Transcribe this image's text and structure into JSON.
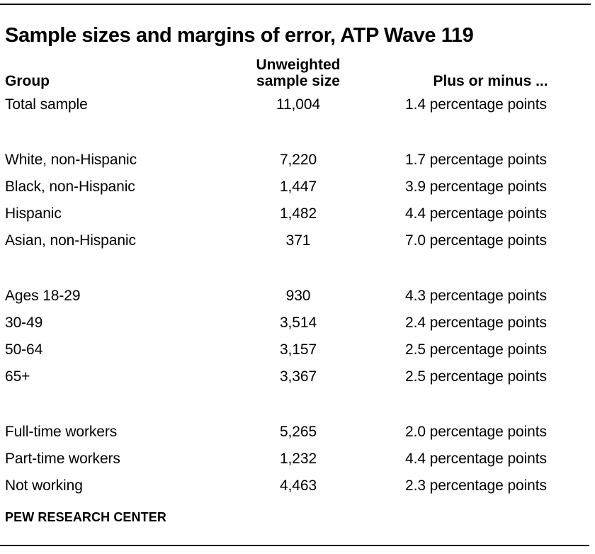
{
  "colors": {
    "background": "#ffffff",
    "text": "#000000",
    "rule": "#000000"
  },
  "title": "Sample sizes and margins of error, ATP Wave 119",
  "header": {
    "group": "Group",
    "sample_size_line1": "Unweighted",
    "sample_size_line2": "sample size",
    "margin": "Plus or minus ..."
  },
  "footer": "PEW RESEARCH CENTER",
  "chart_data": {
    "type": "table",
    "title": "Sample sizes and margins of error, ATP Wave 119",
    "columns": [
      "Group",
      "Unweighted sample size",
      "Plus or minus ..."
    ],
    "row_groups": [
      [
        {
          "group": "Total sample",
          "sample_size": "11,004",
          "margin_of_error": "1.4 percentage points"
        }
      ],
      [
        {
          "group": "White, non-Hispanic",
          "sample_size": "7,220",
          "margin_of_error": "1.7 percentage points"
        },
        {
          "group": "Black, non-Hispanic",
          "sample_size": "1,447",
          "margin_of_error": "3.9 percentage points"
        },
        {
          "group": "Hispanic",
          "sample_size": "1,482",
          "margin_of_error": "4.4 percentage points"
        },
        {
          "group": "Asian, non-Hispanic",
          "sample_size": "371",
          "margin_of_error": "7.0 percentage points"
        }
      ],
      [
        {
          "group": "Ages 18-29",
          "sample_size": "930",
          "margin_of_error": "4.3 percentage points"
        },
        {
          "group": "30-49",
          "sample_size": "3,514",
          "margin_of_error": "2.4 percentage points"
        },
        {
          "group": "50-64",
          "sample_size": "3,157",
          "margin_of_error": "2.5 percentage points"
        },
        {
          "group": "65+",
          "sample_size": "3,367",
          "margin_of_error": "2.5 percentage points"
        }
      ],
      [
        {
          "group": "Full-time workers",
          "sample_size": "5,265",
          "margin_of_error": "2.0 percentage points"
        },
        {
          "group": "Part-time workers",
          "sample_size": "1,232",
          "margin_of_error": "4.4 percentage points"
        },
        {
          "group": "Not working",
          "sample_size": "4,463",
          "margin_of_error": "2.3 percentage points"
        }
      ]
    ],
    "source_label": "PEW RESEARCH CENTER"
  }
}
